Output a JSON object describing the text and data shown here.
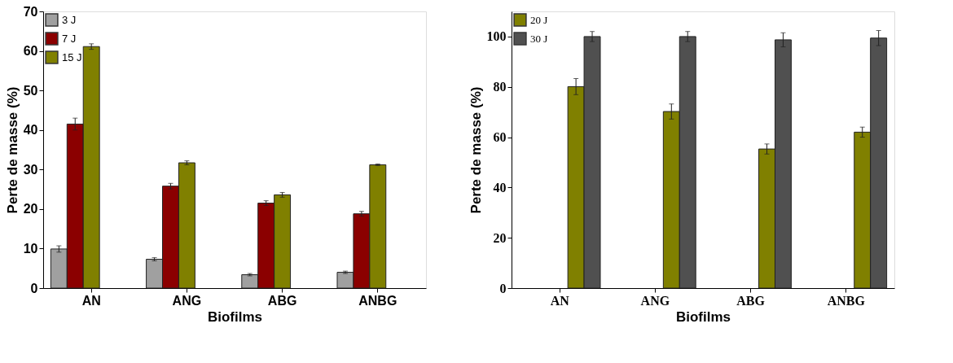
{
  "chart_data": [
    {
      "type": "bar",
      "xlabel": "Biofilms",
      "ylabel": "Perte de masse (%)",
      "categories": [
        "AN",
        "ANG",
        "ABG",
        "ANBG"
      ],
      "ylim": [
        0,
        70
      ],
      "yticks": [
        0,
        10,
        20,
        30,
        40,
        50,
        60,
        70
      ],
      "legend": "top left",
      "series": [
        {
          "name": "3 J",
          "color": "#a0a0a0",
          "values": [
            9.9,
            7.3,
            3.4,
            4.0
          ],
          "errors": [
            0.8,
            0.4,
            0.3,
            0.3
          ]
        },
        {
          "name": "7 J",
          "color": "#8b0000",
          "values": [
            41.5,
            25.8,
            21.5,
            18.8
          ],
          "errors": [
            1.5,
            0.7,
            0.6,
            0.6
          ]
        },
        {
          "name": "15 J",
          "color": "#808000",
          "values": [
            61.1,
            31.7,
            23.6,
            31.2
          ],
          "errors": [
            0.7,
            0.5,
            0.6,
            0.2
          ]
        }
      ]
    },
    {
      "type": "bar",
      "xlabel": "Biofilms",
      "ylabel": "Perte de masse (%)",
      "categories": [
        "AN",
        "ANG",
        "ABG",
        "ANBG"
      ],
      "ylim": [
        0,
        110
      ],
      "yticks": [
        0,
        20,
        40,
        60,
        80,
        100
      ],
      "legend": "top left",
      "series": [
        {
          "name": "20 J",
          "color": "#808000",
          "values": [
            80.1,
            70.2,
            55.3,
            62.0
          ],
          "errors": [
            3.2,
            3.0,
            2.0,
            2.0
          ]
        },
        {
          "name": "30 J",
          "color": "#505050",
          "values": [
            100.0,
            100.0,
            98.7,
            99.4
          ],
          "errors": [
            2.0,
            2.0,
            2.8,
            3.0
          ]
        }
      ]
    }
  ]
}
